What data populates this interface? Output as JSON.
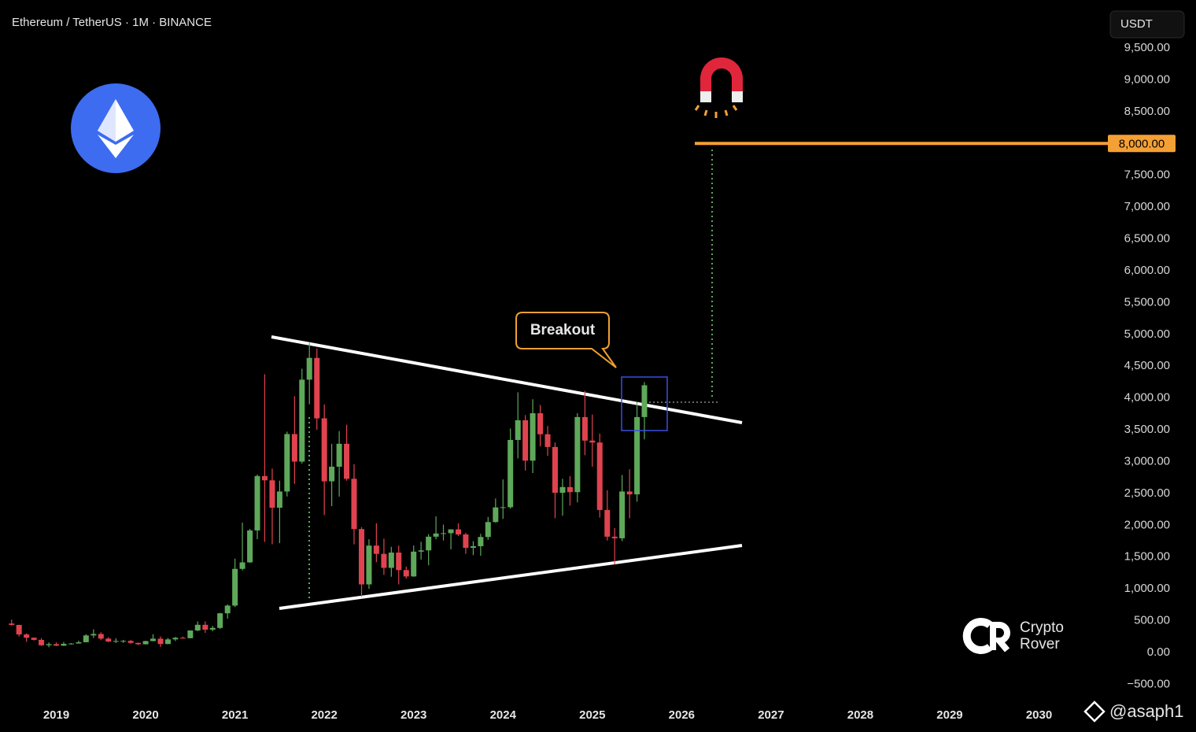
{
  "chart_data": {
    "type": "candlestick",
    "title": "Ethereum / TetherUS · 1M · BINANCE",
    "currency_button": "USDT",
    "up_color": "#5ea85a",
    "down_color": "#e0434f",
    "x": [
      2018.5,
      2018.583,
      2018.667,
      2018.75,
      2018.833,
      2018.917,
      2019,
      2019.083,
      2019.167,
      2019.25,
      2019.333,
      2019.417,
      2019.5,
      2019.583,
      2019.667,
      2019.75,
      2019.833,
      2019.917,
      2020,
      2020.083,
      2020.167,
      2020.25,
      2020.333,
      2020.417,
      2020.5,
      2020.583,
      2020.667,
      2020.75,
      2020.833,
      2020.917,
      2021,
      2021.083,
      2021.167,
      2021.25,
      2021.333,
      2021.417,
      2021.5,
      2021.583,
      2021.667,
      2021.75,
      2021.833,
      2021.917,
      2022,
      2022.083,
      2022.167,
      2022.25,
      2022.333,
      2022.417,
      2022.5,
      2022.583,
      2022.667,
      2022.75,
      2022.833,
      2022.917,
      2023,
      2023.083,
      2023.167,
      2023.25,
      2023.333,
      2023.417,
      2023.5,
      2023.583,
      2023.667,
      2023.75,
      2023.833,
      2023.917,
      2024,
      2024.083,
      2024.167,
      2024.25,
      2024.333,
      2024.417,
      2024.5,
      2024.583,
      2024.667,
      2024.75,
      2024.833,
      2024.917,
      2025,
      2025.083,
      2025.167,
      2025.25,
      2025.333,
      2025.417,
      2025.5,
      2025.583
    ],
    "open": [
      455,
      433,
      283,
      232,
      198,
      114,
      131,
      107,
      136,
      141,
      161,
      268,
      291,
      218,
      172,
      180,
      182,
      151,
      129,
      179,
      217,
      133,
      206,
      231,
      225,
      346,
      435,
      359,
      386,
      616,
      737,
      1314,
      1416,
      1918,
      2773,
      2706,
      2275,
      2530,
      3433,
      3000,
      4288,
      4630,
      3680,
      2690,
      2920,
      3280,
      2730,
      1940,
      1070,
      1680,
      1550,
      1330,
      1570,
      1295,
      1195,
      1585,
      1605,
      1820,
      1870,
      1875,
      1935,
      1855,
      1645,
      1670,
      1815,
      2050,
      2280,
      2283,
      3340,
      3650,
      3015,
      3760,
      3430,
      3230,
      2510,
      2600,
      2520,
      3700,
      3330,
      3300,
      2240,
      1820,
      1795,
      2530,
      2485,
      3700
    ],
    "high": [
      516,
      435,
      300,
      235,
      225,
      158,
      160,
      165,
      148,
      186,
      286,
      364,
      318,
      240,
      223,
      198,
      195,
      154,
      184,
      288,
      253,
      228,
      245,
      250,
      347,
      488,
      488,
      418,
      623,
      755,
      1475,
      2041,
      1943,
      2797,
      4372,
      2891,
      2700,
      3470,
      4027,
      4460,
      4868,
      4778,
      3900,
      3280,
      3480,
      3580,
      2960,
      1970,
      1780,
      2030,
      1790,
      1660,
      1680,
      1350,
      1680,
      1740,
      1860,
      2140,
      2010,
      1930,
      2030,
      1880,
      1750,
      1865,
      2130,
      2420,
      2720,
      3520,
      4090,
      3730,
      3980,
      3890,
      3560,
      3300,
      2730,
      2770,
      3760,
      4110,
      3740,
      3440,
      2550,
      1955,
      2790,
      2880,
      3940,
      4250
    ],
    "low": [
      425,
      250,
      167,
      188,
      102,
      82,
      101,
      102,
      125,
      140,
      159,
      227,
      193,
      162,
      150,
      151,
      137,
      117,
      127,
      175,
      86,
      130,
      180,
      216,
      222,
      335,
      308,
      334,
      370,
      532,
      714,
      1290,
      1410,
      1781,
      1737,
      1700,
      1718,
      2451,
      2651,
      2970,
      3900,
      3500,
      2160,
      2300,
      2450,
      2700,
      1700,
      880,
      1000,
      1420,
      1220,
      1190,
      1070,
      1160,
      1190,
      1460,
      1370,
      1780,
      1760,
      1620,
      1830,
      1550,
      1530,
      1520,
      1770,
      2040,
      2100,
      2260,
      3050,
      2860,
      2820,
      3240,
      3090,
      2110,
      2150,
      2310,
      2360,
      3100,
      2920,
      2120,
      1760,
      1385,
      1750,
      2110,
      2370,
      3350
    ],
    "close": [
      433,
      283,
      232,
      198,
      114,
      131,
      107,
      136,
      141,
      161,
      268,
      291,
      218,
      172,
      180,
      182,
      151,
      129,
      179,
      217,
      133,
      206,
      231,
      225,
      346,
      435,
      359,
      386,
      616,
      737,
      1314,
      1416,
      1918,
      2773,
      2706,
      2275,
      2530,
      3433,
      3000,
      4288,
      4630,
      3680,
      2690,
      2920,
      3280,
      2730,
      1940,
      1070,
      1680,
      1550,
      1330,
      1570,
      1295,
      1195,
      1585,
      1605,
      1820,
      1870,
      1875,
      1935,
      1855,
      1645,
      1670,
      1815,
      2050,
      2280,
      2283,
      3340,
      3650,
      3015,
      3760,
      3430,
      3230,
      2510,
      2600,
      2520,
      3700,
      3330,
      3300,
      2240,
      1820,
      1795,
      2530,
      2485,
      3700,
      4200
    ],
    "xlim": [
      2018.37,
      2030.7
    ],
    "xticks": [
      2019,
      2020,
      2021,
      2022,
      2023,
      2024,
      2025,
      2026,
      2027,
      2028,
      2029,
      2030
    ],
    "ylim": [
      -755,
      10255
    ],
    "yticks": [
      {
        "value": -500,
        "label": "−500.00"
      },
      {
        "value": 0,
        "label": "0.00"
      },
      {
        "value": 500,
        "label": "500.00"
      },
      {
        "value": 1000,
        "label": "1,000.00"
      },
      {
        "value": 1500,
        "label": "1,500.00"
      },
      {
        "value": 2000,
        "label": "2,000.00"
      },
      {
        "value": 2500,
        "label": "2,500.00"
      },
      {
        "value": 3000,
        "label": "3,000.00"
      },
      {
        "value": 3500,
        "label": "3,500.00"
      },
      {
        "value": 4000,
        "label": "4,000.00"
      },
      {
        "value": 4500,
        "label": "4,500.00"
      },
      {
        "value": 5000,
        "label": "5,000.00"
      },
      {
        "value": 5500,
        "label": "5,500.00"
      },
      {
        "value": 6000,
        "label": "6,000.00"
      },
      {
        "value": 6500,
        "label": "6,500.00"
      },
      {
        "value": 7000,
        "label": "7,000.00"
      },
      {
        "value": 7500,
        "label": "7,500.00"
      },
      {
        "value": 8000,
        "label": "8,000.00"
      },
      {
        "value": 8500,
        "label": "8,500.00"
      },
      {
        "value": 9000,
        "label": "9,000.00"
      },
      {
        "value": 9500,
        "label": "9,500.00"
      }
    ],
    "target": {
      "value": 8000,
      "label": "8,000.00",
      "color": "#f5a034"
    },
    "annotation": "Breakout",
    "watermark": [
      "Crypto",
      "Rover"
    ],
    "credit": "@asaph1"
  }
}
